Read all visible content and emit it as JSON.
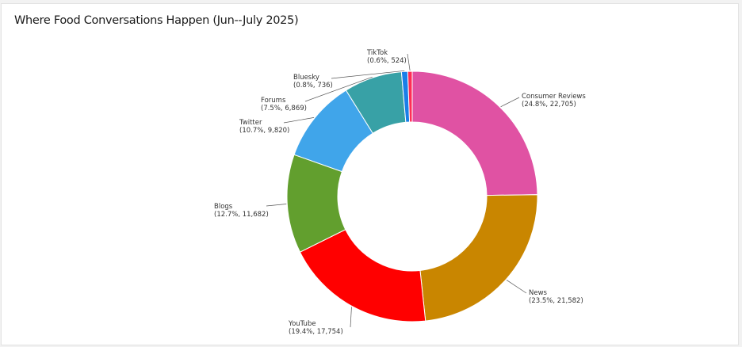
{
  "chart_data": {
    "type": "pie",
    "variant": "donut",
    "title": "Where Food Conversations Happen (Jun--July 2025)",
    "slices": [
      {
        "name": "Consumer Reviews",
        "pct_label": "24.8%",
        "value_label": "22,705",
        "value": 22705,
        "color": "#e052a3"
      },
      {
        "name": "News",
        "pct_label": "23.5%",
        "value_label": "21,582",
        "value": 21582,
        "color": "#c98600"
      },
      {
        "name": "YouTube",
        "pct_label": "19.4%",
        "value_label": "17,754",
        "value": 17754,
        "color": "#ff0000"
      },
      {
        "name": "Blogs",
        "pct_label": "12.7%",
        "value_label": "11,682",
        "value": 11682,
        "color": "#629f2e"
      },
      {
        "name": "Twitter",
        "pct_label": "10.7%",
        "value_label": "9,820",
        "value": 9820,
        "color": "#40a5ea"
      },
      {
        "name": "Forums",
        "pct_label": "7.5%",
        "value_label": "6,869",
        "value": 6869,
        "color": "#38a1a6"
      },
      {
        "name": "Bluesky",
        "pct_label": "0.8%",
        "value_label": "736",
        "value": 736,
        "color": "#1a7fe8"
      },
      {
        "name": "TikTok",
        "pct_label": "0.6%",
        "value_label": "524",
        "value": 524,
        "color": "#ff2d55"
      }
    ]
  }
}
